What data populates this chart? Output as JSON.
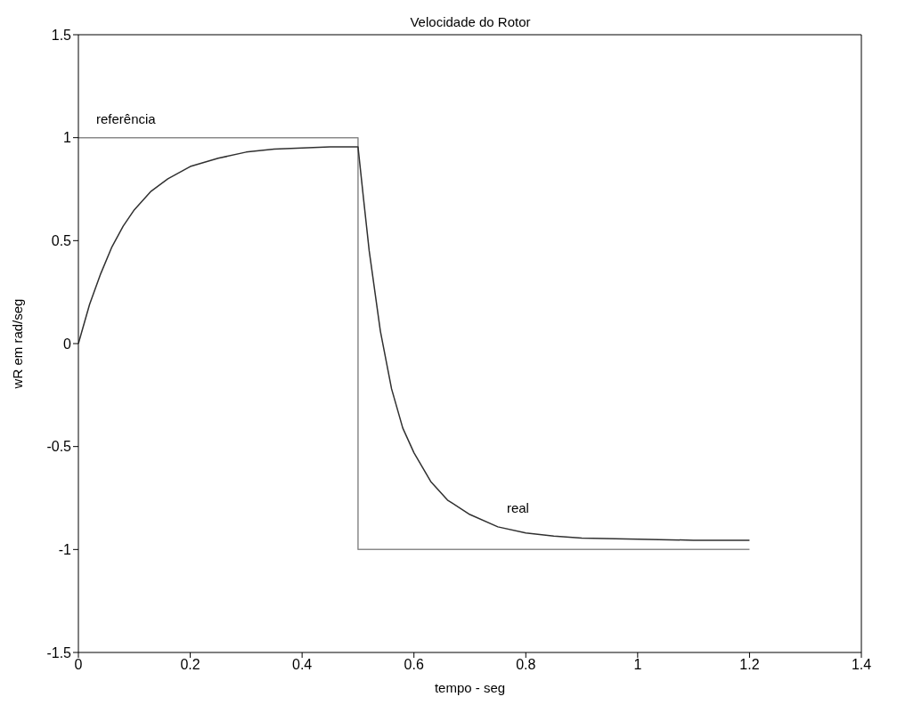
{
  "chart_data": {
    "type": "line",
    "title": "Velocidade do Rotor",
    "xlabel": "tempo - seg",
    "ylabel": "wR em rad/seg",
    "xlim": [
      0,
      1.4
    ],
    "xticks": [
      0,
      0.2,
      0.4,
      0.6,
      0.8,
      1,
      1.2,
      1.4
    ],
    "ylim": [
      -1.5,
      1.5
    ],
    "yticks": [
      -1.5,
      -1,
      -0.5,
      0,
      0.5,
      1,
      1.5
    ],
    "marker": "none",
    "line_style": "solid",
    "series": [
      {
        "name": "referência",
        "color": "#8a8a8a",
        "x": [
          0,
          0.5,
          0.5,
          1.2
        ],
        "values": [
          1,
          1,
          -1,
          -1
        ]
      },
      {
        "name": "real",
        "color": "#303030",
        "x": [
          0,
          0.02,
          0.04,
          0.06,
          0.08,
          0.1,
          0.13,
          0.16,
          0.2,
          0.25,
          0.3,
          0.35,
          0.4,
          0.45,
          0.5,
          0.51,
          0.52,
          0.54,
          0.56,
          0.58,
          0.6,
          0.63,
          0.66,
          0.7,
          0.75,
          0.8,
          0.85,
          0.9,
          1,
          1.1,
          1.2
        ],
        "values": [
          0,
          0.19,
          0.34,
          0.47,
          0.57,
          0.65,
          0.74,
          0.8,
          0.86,
          0.9,
          0.93,
          0.945,
          0.95,
          0.955,
          0.955,
          0.7,
          0.45,
          0.06,
          -0.22,
          -0.41,
          -0.53,
          -0.67,
          -0.76,
          -0.83,
          -0.89,
          -0.92,
          -0.935,
          -0.945,
          -0.95,
          -0.955,
          -0.955
        ]
      }
    ]
  }
}
